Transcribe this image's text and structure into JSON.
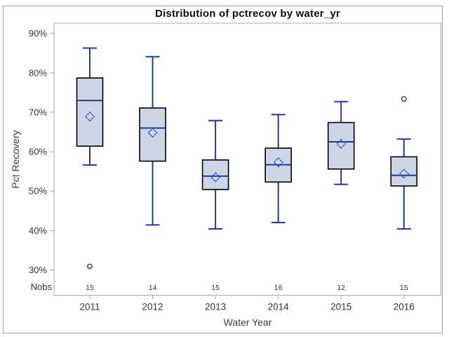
{
  "chart_data": {
    "type": "boxplot",
    "title": "Distribution of pctrecov by water_yr",
    "xlabel": "Water Year",
    "ylabel": "Pct Recovery",
    "y_axis": {
      "min": 30,
      "max": 90,
      "step": 10,
      "unit": "%",
      "tick_labels": [
        "30%",
        "40%",
        "50%",
        "60%",
        "70%",
        "80%",
        "90%"
      ]
    },
    "categories": [
      "2011",
      "2012",
      "2013",
      "2014",
      "2015",
      "2016"
    ],
    "nobs": {
      "label": "Nobs",
      "values": [
        15,
        14,
        15,
        16,
        12,
        15
      ]
    },
    "boxes": [
      {
        "category": "2011",
        "whisker_low": 56.6,
        "q1": 61.4,
        "median": 73.0,
        "q3": 78.7,
        "whisker_high": 86.3,
        "mean": 68.9,
        "outliers": [
          30.9
        ]
      },
      {
        "category": "2012",
        "whisker_low": 41.4,
        "q1": 57.6,
        "median": 66.0,
        "q3": 71.1,
        "whisker_high": 84.1,
        "mean": 64.8,
        "outliers": []
      },
      {
        "category": "2013",
        "whisker_low": 40.4,
        "q1": 50.4,
        "median": 53.8,
        "q3": 57.9,
        "whisker_high": 67.9,
        "mean": 53.5,
        "outliers": []
      },
      {
        "category": "2014",
        "whisker_low": 42.0,
        "q1": 52.3,
        "median": 56.7,
        "q3": 60.9,
        "whisker_high": 69.4,
        "mean": 57.3,
        "outliers": []
      },
      {
        "category": "2015",
        "whisker_low": 51.7,
        "q1": 55.6,
        "median": 62.5,
        "q3": 67.4,
        "whisker_high": 72.7,
        "mean": 62.0,
        "outliers": []
      },
      {
        "category": "2016",
        "whisker_low": 40.4,
        "q1": 51.3,
        "median": 54.0,
        "q3": 58.7,
        "whisker_high": 63.2,
        "mean": 54.4,
        "outliers": [
          73.4
        ]
      }
    ],
    "legend": "none",
    "grid": "off",
    "colors": {
      "box_fill": "#cdd6e6",
      "box_border": "#000000",
      "whisker": "#1f3d99",
      "median": "#1f3d99",
      "mean_marker": "#2440c4",
      "outlier": "#2f2f2f",
      "plot_frame": "#a9a9a9",
      "figure_border": "#a2a2a2",
      "tick_text": "#333333"
    }
  }
}
